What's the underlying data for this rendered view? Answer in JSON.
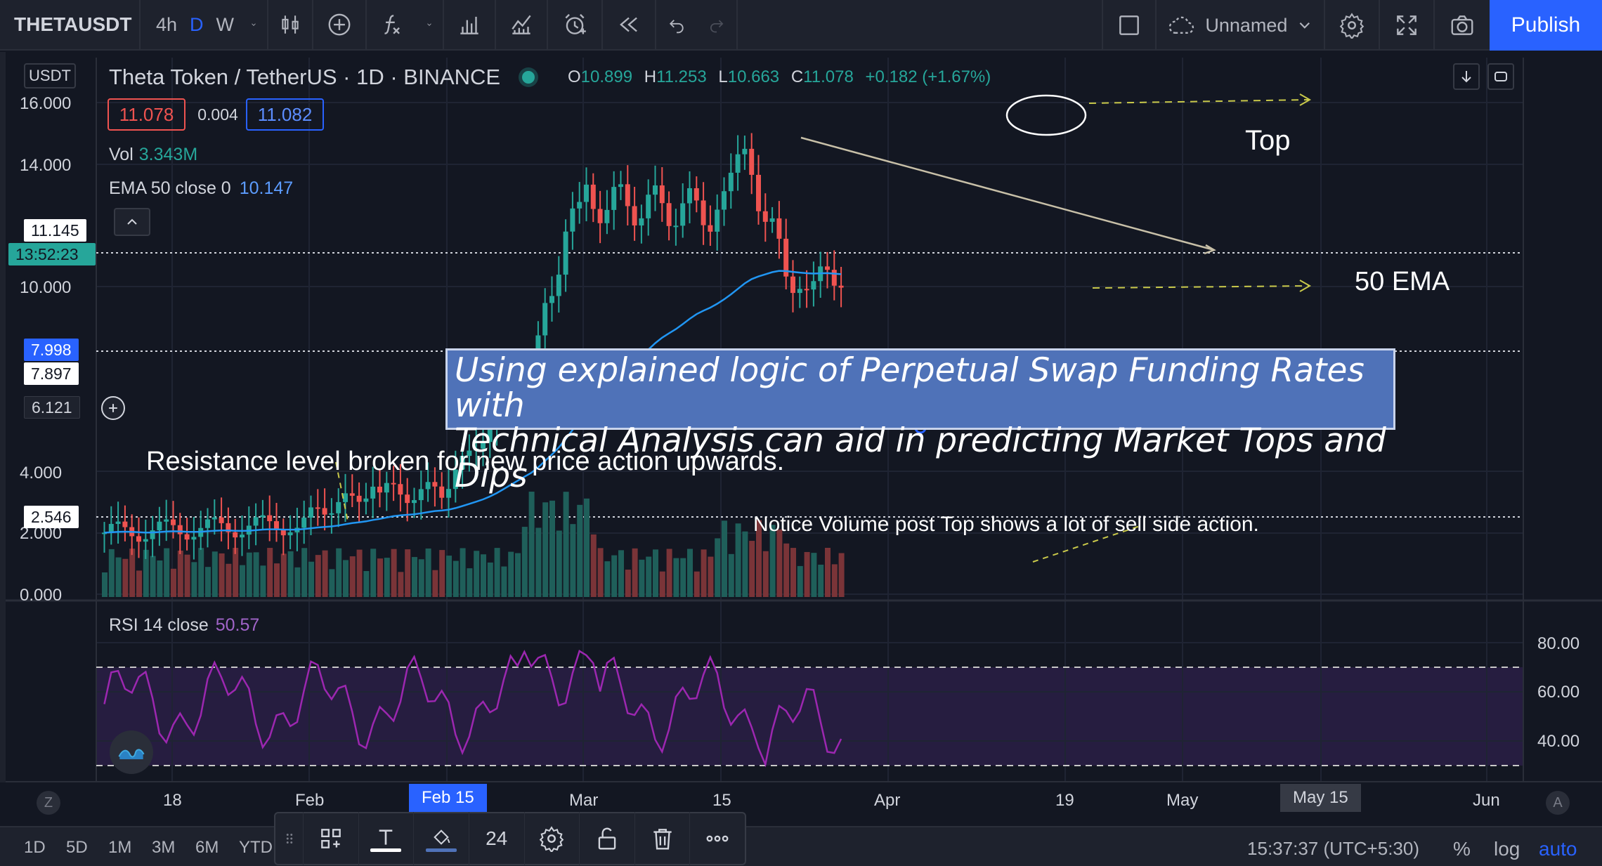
{
  "toolbar": {
    "symbol": "THETAUSDT",
    "intervals": [
      "4h",
      "D",
      "W"
    ],
    "active_interval": "D",
    "layout_name": "Unnamed",
    "publish_label": "Publish"
  },
  "legend": {
    "title": "Theta Token / TetherUS · 1D · BINANCE",
    "open_label": "O",
    "open": "10.899",
    "high_label": "H",
    "high": "11.253",
    "low_label": "L",
    "low": "10.663",
    "close_label": "C",
    "close": "11.078",
    "change": "+0.182 (+1.67%)",
    "bid": "11.078",
    "spread": "0.004",
    "ask": "11.082",
    "vol_label": "Vol",
    "vol_value": "3.343M",
    "ema_label": "EMA 50 close 0",
    "ema_value": "10.147",
    "rsi_label": "RSI 14 close",
    "rsi_value": "50.57",
    "currency": "USDT"
  },
  "price_axis": {
    "labels": [
      "16.000",
      "14.000",
      "10.000",
      "4.000",
      "2.000",
      "0.000"
    ],
    "tags": {
      "t1": "11.145",
      "countdown": "13:52:23",
      "t2": "7.998",
      "t3": "7.897",
      "t4": "6.121",
      "t5": "2.546"
    }
  },
  "rsi_axis": {
    "labels": [
      "80.00",
      "60.00",
      "40.00"
    ]
  },
  "time_axis": {
    "labels": [
      "18",
      "Feb",
      "Mar",
      "15",
      "Apr",
      "19",
      "May",
      "Jun"
    ],
    "highlight": "Feb 15",
    "hover": "May 15"
  },
  "annotations": {
    "top": "Top",
    "ema": "50 EMA",
    "resistance": "Resistance level broken for new price action upwards.",
    "volume": "Notice Volume post Top shows a lot of sell side action.",
    "callout_line1": "Using explained logic of Perpetual Swap Funding Rates with",
    "callout_line2": "Technical Analysis can aid in predicting Market Tops and Dips"
  },
  "bottom": {
    "ranges": [
      "1D",
      "5D",
      "1M",
      "3M",
      "6M",
      "YTD"
    ],
    "time": "15:37:37 (UTC+5:30)",
    "percent": "%",
    "log": "log",
    "auto": "auto",
    "font_size": "24",
    "z_label": "Z",
    "a_label": "A"
  },
  "colors": {
    "up": "#26a69a",
    "down": "#ef5350",
    "ema": "#2196f3",
    "rsi": "#9c27b0",
    "accent": "#2962ff"
  }
}
